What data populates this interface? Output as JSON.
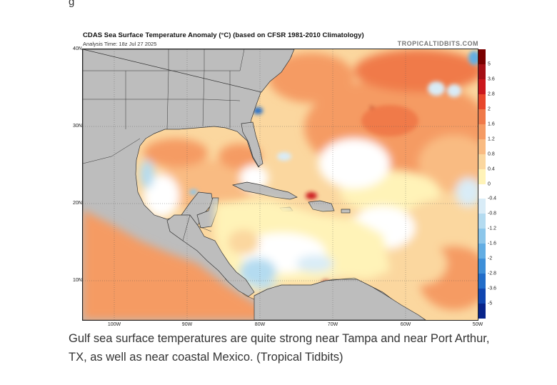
{
  "figure": {
    "title": "CDAS Sea Surface Temperature Anomaly (°C) (based on CFSR 1981-2010 Climatology)",
    "subtitle": "Analysis Time: 18z Jul 27 2025",
    "credit": "TROPICALTIDBITS.COM"
  },
  "map": {
    "lat_labels": [
      "40N",
      "30N",
      "20N",
      "10N"
    ],
    "lon_labels": [
      "100W",
      "90W",
      "80W",
      "70W",
      "60W",
      "50W"
    ]
  },
  "colorbar": {
    "ticks": [
      "5",
      "3.6",
      "2.8",
      "2",
      "1.6",
      "1.2",
      "0.8",
      "0.4",
      "0",
      "-0.4",
      "-0.8",
      "-1.2",
      "-1.6",
      "-2",
      "-2.8",
      "-3.6",
      "-5"
    ],
    "colors": [
      "#7a0000",
      "#a50f15",
      "#cb181d",
      "#e8472b",
      "#f07a4a",
      "#f59b64",
      "#f9bb82",
      "#fbd79f",
      "#fff3b8",
      "#ffffff",
      "#d9ecf7",
      "#b4dbf0",
      "#8cc6ea",
      "#62ade3",
      "#3e8fd8",
      "#226dc9",
      "#1046b0",
      "#08248a"
    ]
  },
  "caption": "Gulf sea surface temperatures are quite strong near Tampa and near Port Arthur, TX, as well as near coastal Mexico. (Tropical Tidbits)"
}
